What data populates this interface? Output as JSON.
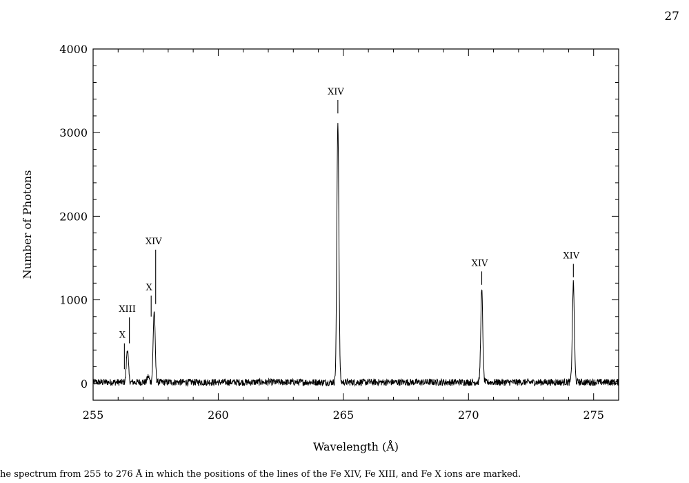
{
  "page": {
    "number": "27",
    "caption": "he spectrum from 255 to 276 Å in which the positions of the lines of the Fe XIV, Fe XIII, and Fe X ions are marked."
  },
  "chart_data": {
    "type": "line",
    "title": "",
    "xlabel": "Wavelength (Å)",
    "ylabel": "Number of Photons",
    "xlim": [
      255,
      276
    ],
    "ylim": [
      -200,
      4000
    ],
    "x_ticks": [
      255,
      260,
      265,
      270,
      275
    ],
    "x_tick_labels": [
      "255",
      "260",
      "265",
      "270",
      "275"
    ],
    "y_ticks": [
      0,
      1000,
      2000,
      3000,
      4000
    ],
    "y_tick_labels": [
      "0",
      "1000",
      "2000",
      "3000",
      "4000"
    ],
    "x_minor_step": 1,
    "y_minor_step": 200,
    "grid": false,
    "baseline_level": 15,
    "noise_amplitude": 55,
    "series": [
      {
        "peaks": [
          {
            "x": 256.37,
            "y": 400
          },
          {
            "x": 257.2,
            "y": 70
          },
          {
            "x": 257.44,
            "y": 850
          },
          {
            "x": 264.78,
            "y": 3120
          },
          {
            "x": 270.53,
            "y": 1100
          },
          {
            "x": 274.19,
            "y": 1180
          }
        ]
      }
    ],
    "annotations": [
      {
        "label": "X",
        "x": 256.25,
        "line_top_y": 480,
        "line_bottom_y": 170
      },
      {
        "label": "XIII",
        "x": 256.45,
        "line_top_y": 790,
        "line_bottom_y": 480
      },
      {
        "label": "X",
        "x": 257.32,
        "line_top_y": 1050,
        "line_bottom_y": 800
      },
      {
        "label": "XIV",
        "x": 257.5,
        "line_top_y": 1600,
        "line_bottom_y": 950
      },
      {
        "label": "XIV",
        "x": 264.78,
        "line_top_y": 3390,
        "line_bottom_y": 3230
      },
      {
        "label": "XIV",
        "x": 270.53,
        "line_top_y": 1340,
        "line_bottom_y": 1180
      },
      {
        "label": "XIV",
        "x": 274.19,
        "line_top_y": 1430,
        "line_bottom_y": 1270
      }
    ]
  }
}
